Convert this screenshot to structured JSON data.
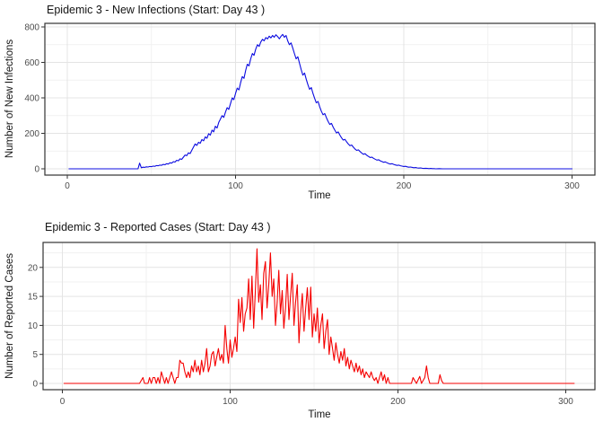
{
  "theme": {
    "background": "#FFFFFF",
    "panel_border_color": "#333333",
    "grid_major_color": "#E4E4E4",
    "grid_minor_color": "#F1F1F1",
    "tick_mark_color": "#333333",
    "tick_label_color": "#4D4D4D",
    "title_color": "#141414"
  },
  "chart_data": [
    {
      "type": "line",
      "title": "Epidemic 3 - New Infections (Start: Day 43 )",
      "xlabel": "Time",
      "ylabel": "Number of New Infections",
      "line_color": "#0B0BE0",
      "legend": "none",
      "grid": true,
      "xlim": [
        -14,
        314
      ],
      "ylim": [
        -38,
        820
      ],
      "x_ticks": [
        0,
        100,
        200,
        300
      ],
      "x_minor_ticks": [
        50,
        150,
        250
      ],
      "y_ticks": [
        0,
        200,
        400,
        600,
        800
      ],
      "y_minor_ticks": [
        100,
        300,
        500,
        700
      ],
      "start_day": 43,
      "points": [
        [
          1,
          0
        ],
        [
          10,
          0
        ],
        [
          20,
          0
        ],
        [
          30,
          0
        ],
        [
          40,
          0
        ],
        [
          42,
          0
        ],
        [
          43,
          32
        ],
        [
          44,
          6
        ],
        [
          45,
          9
        ],
        [
          46,
          8
        ],
        [
          47,
          11
        ],
        [
          48,
          10
        ],
        [
          49,
          13
        ],
        [
          50,
          12
        ],
        [
          51,
          15
        ],
        [
          52,
          14
        ],
        [
          53,
          18
        ],
        [
          54,
          17
        ],
        [
          55,
          21
        ],
        [
          56,
          20
        ],
        [
          57,
          25
        ],
        [
          58,
          23
        ],
        [
          59,
          29
        ],
        [
          60,
          27
        ],
        [
          61,
          34
        ],
        [
          62,
          32
        ],
        [
          63,
          40
        ],
        [
          64,
          38
        ],
        [
          65,
          48
        ],
        [
          66,
          45
        ],
        [
          67,
          56
        ],
        [
          68,
          53
        ],
        [
          69,
          66
        ],
        [
          70,
          78
        ],
        [
          71,
          74
        ],
        [
          72,
          90
        ],
        [
          73,
          86
        ],
        [
          74,
          105
        ],
        [
          75,
          122
        ],
        [
          76,
          140
        ],
        [
          77,
          132
        ],
        [
          78,
          150
        ],
        [
          79,
          144
        ],
        [
          80,
          165
        ],
        [
          81,
          158
        ],
        [
          82,
          180
        ],
        [
          83,
          172
        ],
        [
          84,
          198
        ],
        [
          85,
          190
        ],
        [
          86,
          218
        ],
        [
          87,
          208
        ],
        [
          88,
          240
        ],
        [
          89,
          230
        ],
        [
          90,
          262
        ],
        [
          91,
          280
        ],
        [
          92,
          300
        ],
        [
          93,
          290
        ],
        [
          94,
          320
        ],
        [
          95,
          345
        ],
        [
          96,
          335
        ],
        [
          97,
          368
        ],
        [
          98,
          400
        ],
        [
          99,
          390
        ],
        [
          100,
          425
        ],
        [
          101,
          455
        ],
        [
          102,
          445
        ],
        [
          103,
          485
        ],
        [
          104,
          520
        ],
        [
          105,
          510
        ],
        [
          106,
          555
        ],
        [
          107,
          590
        ],
        [
          108,
          580
        ],
        [
          109,
          620
        ],
        [
          110,
          650
        ],
        [
          111,
          640
        ],
        [
          112,
          675
        ],
        [
          113,
          700
        ],
        [
          114,
          690
        ],
        [
          115,
          715
        ],
        [
          116,
          730
        ],
        [
          117,
          722
        ],
        [
          118,
          740
        ],
        [
          119,
          732
        ],
        [
          120,
          748
        ],
        [
          121,
          738
        ],
        [
          122,
          752
        ],
        [
          123,
          742
        ],
        [
          124,
          756
        ],
        [
          125,
          746
        ],
        [
          126,
          733
        ],
        [
          127,
          747
        ],
        [
          128,
          758
        ],
        [
          129,
          742
        ],
        [
          130,
          752
        ],
        [
          131,
          722
        ],
        [
          132,
          700
        ],
        [
          133,
          710
        ],
        [
          134,
          680
        ],
        [
          135,
          650
        ],
        [
          136,
          620
        ],
        [
          137,
          632
        ],
        [
          138,
          595
        ],
        [
          139,
          560
        ],
        [
          140,
          528
        ],
        [
          141,
          540
        ],
        [
          142,
          505
        ],
        [
          143,
          475
        ],
        [
          144,
          448
        ],
        [
          145,
          458
        ],
        [
          146,
          425
        ],
        [
          147,
          398
        ],
        [
          148,
          372
        ],
        [
          149,
          380
        ],
        [
          150,
          350
        ],
        [
          151,
          325
        ],
        [
          152,
          305
        ],
        [
          153,
          312
        ],
        [
          154,
          288
        ],
        [
          155,
          268
        ],
        [
          156,
          250
        ],
        [
          157,
          256
        ],
        [
          158,
          235
        ],
        [
          159,
          218
        ],
        [
          160,
          202
        ],
        [
          161,
          208
        ],
        [
          162,
          190
        ],
        [
          163,
          175
        ],
        [
          164,
          162
        ],
        [
          165,
          166
        ],
        [
          166,
          152
        ],
        [
          167,
          140
        ],
        [
          168,
          130
        ],
        [
          169,
          134
        ],
        [
          170,
          122
        ],
        [
          171,
          112
        ],
        [
          172,
          104
        ],
        [
          173,
          107
        ],
        [
          174,
          97
        ],
        [
          175,
          89
        ],
        [
          176,
          82
        ],
        [
          177,
          85
        ],
        [
          178,
          76
        ],
        [
          179,
          70
        ],
        [
          180,
          64
        ],
        [
          181,
          66
        ],
        [
          182,
          59
        ],
        [
          183,
          54
        ],
        [
          184,
          49
        ],
        [
          185,
          51
        ],
        [
          186,
          45
        ],
        [
          187,
          41
        ],
        [
          188,
          37
        ],
        [
          189,
          39
        ],
        [
          190,
          34
        ],
        [
          191,
          30
        ],
        [
          192,
          27
        ],
        [
          193,
          29
        ],
        [
          194,
          25
        ],
        [
          195,
          22
        ],
        [
          196,
          19
        ],
        [
          197,
          21
        ],
        [
          198,
          17
        ],
        [
          199,
          15
        ],
        [
          200,
          13
        ],
        [
          201,
          14
        ],
        [
          202,
          11
        ],
        [
          203,
          9
        ],
        [
          204,
          10
        ],
        [
          205,
          8
        ],
        [
          206,
          6
        ],
        [
          207,
          7
        ],
        [
          208,
          5
        ],
        [
          209,
          4
        ],
        [
          210,
          5
        ],
        [
          211,
          3
        ],
        [
          212,
          2
        ],
        [
          213,
          3
        ],
        [
          214,
          2
        ],
        [
          215,
          1
        ],
        [
          216,
          2
        ],
        [
          217,
          1
        ],
        [
          218,
          1
        ],
        [
          219,
          0
        ],
        [
          221,
          1
        ],
        [
          223,
          0
        ],
        [
          240,
          0
        ],
        [
          260,
          0
        ],
        [
          280,
          0
        ],
        [
          300,
          0
        ]
      ]
    },
    {
      "type": "line",
      "title": "Epidemic 3 - Reported Cases (Start: Day 43 )",
      "xlabel": "Time",
      "ylabel": "Number of Reported Cases",
      "line_color": "#F50000",
      "legend": "none",
      "grid": true,
      "xlim": [
        -14,
        318
      ],
      "ylim": [
        -1.2,
        24.3
      ],
      "x_ticks": [
        0,
        100,
        200,
        300
      ],
      "x_minor_ticks": [
        50,
        150,
        250
      ],
      "y_ticks": [
        0,
        5,
        10,
        15,
        20
      ],
      "y_minor_ticks": [
        2.5,
        7.5,
        12.5,
        17.5,
        22.5
      ],
      "start_day": 43,
      "points": [
        [
          1,
          0
        ],
        [
          10,
          0
        ],
        [
          20,
          0
        ],
        [
          30,
          0
        ],
        [
          40,
          0
        ],
        [
          46,
          0
        ],
        [
          48,
          1
        ],
        [
          49,
          0
        ],
        [
          51,
          0
        ],
        [
          52,
          1
        ],
        [
          53,
          0
        ],
        [
          54,
          1
        ],
        [
          55,
          1
        ],
        [
          56,
          0
        ],
        [
          57,
          1
        ],
        [
          58,
          0
        ],
        [
          59,
          2
        ],
        [
          60,
          1
        ],
        [
          61,
          0
        ],
        [
          62,
          1
        ],
        [
          63,
          0
        ],
        [
          64,
          1
        ],
        [
          65,
          2
        ],
        [
          66,
          1
        ],
        [
          67,
          0
        ],
        [
          68,
          1
        ],
        [
          69,
          1
        ],
        [
          70,
          4
        ],
        [
          71,
          3.5
        ],
        [
          72,
          3.5
        ],
        [
          73,
          2
        ],
        [
          74,
          1
        ],
        [
          75,
          2
        ],
        [
          76,
          1
        ],
        [
          77,
          3
        ],
        [
          78,
          2
        ],
        [
          79,
          4
        ],
        [
          80,
          2
        ],
        [
          81,
          3
        ],
        [
          82,
          1.5
        ],
        [
          83,
          4
        ],
        [
          84,
          2
        ],
        [
          85,
          3.5
        ],
        [
          86,
          6
        ],
        [
          87,
          2
        ],
        [
          88,
          3
        ],
        [
          89,
          5
        ],
        [
          90,
          5.5
        ],
        [
          91,
          3
        ],
        [
          92,
          4.5
        ],
        [
          93,
          6
        ],
        [
          94,
          4
        ],
        [
          95,
          5
        ],
        [
          96,
          3.5
        ],
        [
          97,
          10
        ],
        [
          98,
          6
        ],
        [
          99,
          3.5
        ],
        [
          100,
          7.5
        ],
        [
          101,
          4.5
        ],
        [
          102,
          6
        ],
        [
          103,
          8
        ],
        [
          104,
          5.5
        ],
        [
          105,
          14.5
        ],
        [
          106,
          10.5
        ],
        [
          107,
          14.8
        ],
        [
          108,
          9
        ],
        [
          109,
          12
        ],
        [
          110,
          13
        ],
        [
          111,
          18
        ],
        [
          112,
          11
        ],
        [
          113,
          18.5
        ],
        [
          114,
          9.5
        ],
        [
          115,
          16
        ],
        [
          116,
          23.2
        ],
        [
          117,
          14
        ],
        [
          118,
          17
        ],
        [
          119,
          11
        ],
        [
          120,
          19
        ],
        [
          121,
          21
        ],
        [
          122,
          13
        ],
        [
          123,
          17
        ],
        [
          124,
          22.5
        ],
        [
          125,
          15
        ],
        [
          126,
          18
        ],
        [
          127,
          10
        ],
        [
          128,
          14
        ],
        [
          129,
          19.5
        ],
        [
          130,
          12
        ],
        [
          131,
          16
        ],
        [
          132,
          9.5
        ],
        [
          133,
          13
        ],
        [
          134,
          18.8
        ],
        [
          135,
          11
        ],
        [
          136,
          15
        ],
        [
          137,
          19
        ],
        [
          138,
          10
        ],
        [
          139,
          14
        ],
        [
          140,
          17
        ],
        [
          141,
          7
        ],
        [
          142,
          12
        ],
        [
          143,
          15.5
        ],
        [
          144,
          9
        ],
        [
          145,
          13
        ],
        [
          146,
          16.5
        ],
        [
          147,
          11
        ],
        [
          148,
          16.6
        ],
        [
          149,
          8
        ],
        [
          150,
          12
        ],
        [
          151,
          9
        ],
        [
          152,
          13
        ],
        [
          153,
          7
        ],
        [
          154,
          10
        ],
        [
          155,
          12
        ],
        [
          156,
          6
        ],
        [
          157,
          9
        ],
        [
          158,
          11
        ],
        [
          159,
          5
        ],
        [
          160,
          8
        ],
        [
          161,
          6
        ],
        [
          162,
          4
        ],
        [
          163,
          7
        ],
        [
          164,
          5
        ],
        [
          165,
          3.5
        ],
        [
          166,
          5.5
        ],
        [
          167,
          4
        ],
        [
          168,
          6
        ],
        [
          169,
          3
        ],
        [
          170,
          4.5
        ],
        [
          171,
          2.5
        ],
        [
          172,
          4
        ],
        [
          173,
          3
        ],
        [
          174,
          2
        ],
        [
          175,
          3.5
        ],
        [
          176,
          2
        ],
        [
          177,
          3
        ],
        [
          178,
          1.5
        ],
        [
          179,
          2.5
        ],
        [
          180,
          1
        ],
        [
          181,
          2
        ],
        [
          182,
          1.5
        ],
        [
          183,
          1
        ],
        [
          184,
          2
        ],
        [
          185,
          1
        ],
        [
          186,
          0.5
        ],
        [
          187,
          1
        ],
        [
          188,
          0
        ],
        [
          189,
          1
        ],
        [
          190,
          2
        ],
        [
          191,
          0.5
        ],
        [
          192,
          1.5
        ],
        [
          193,
          0
        ],
        [
          194,
          1
        ],
        [
          195,
          0
        ],
        [
          200,
          0
        ],
        [
          208,
          0
        ],
        [
          209,
          1
        ],
        [
          210,
          0.5
        ],
        [
          211,
          0
        ],
        [
          213,
          1.2
        ],
        [
          214,
          0
        ],
        [
          216,
          1
        ],
        [
          217,
          3
        ],
        [
          218,
          1
        ],
        [
          219,
          0
        ],
        [
          224,
          0
        ],
        [
          225,
          1.5
        ],
        [
          226,
          0.5
        ],
        [
          227,
          0
        ],
        [
          240,
          0
        ],
        [
          260,
          0
        ],
        [
          280,
          0
        ],
        [
          305,
          0
        ]
      ]
    }
  ]
}
